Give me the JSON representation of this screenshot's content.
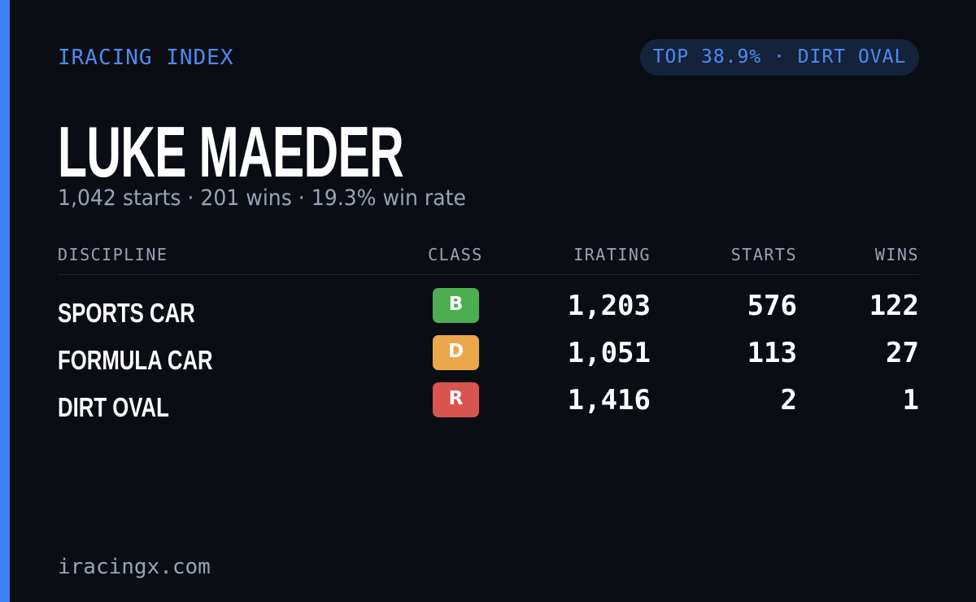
{
  "header": {
    "brand": "IRACING INDEX",
    "badge": "TOP 38.9% · DIRT OVAL"
  },
  "profile": {
    "name": "LUKE MAEDER",
    "summary": "1,042 starts · 201 wins · 19.3% win rate"
  },
  "table": {
    "columns": [
      "DISCIPLINE",
      "CLASS",
      "IRATING",
      "STARTS",
      "WINS"
    ],
    "rows": [
      [
        "SPORTS CAR",
        "B",
        "1,203",
        "576",
        "122"
      ],
      [
        "FORMULA CAR",
        "D",
        "1,051",
        "113",
        "27"
      ],
      [
        "DIRT OVAL",
        "R",
        "1,416",
        "2",
        "1"
      ]
    ]
  },
  "footer": {
    "site": "iracingx.com"
  }
}
